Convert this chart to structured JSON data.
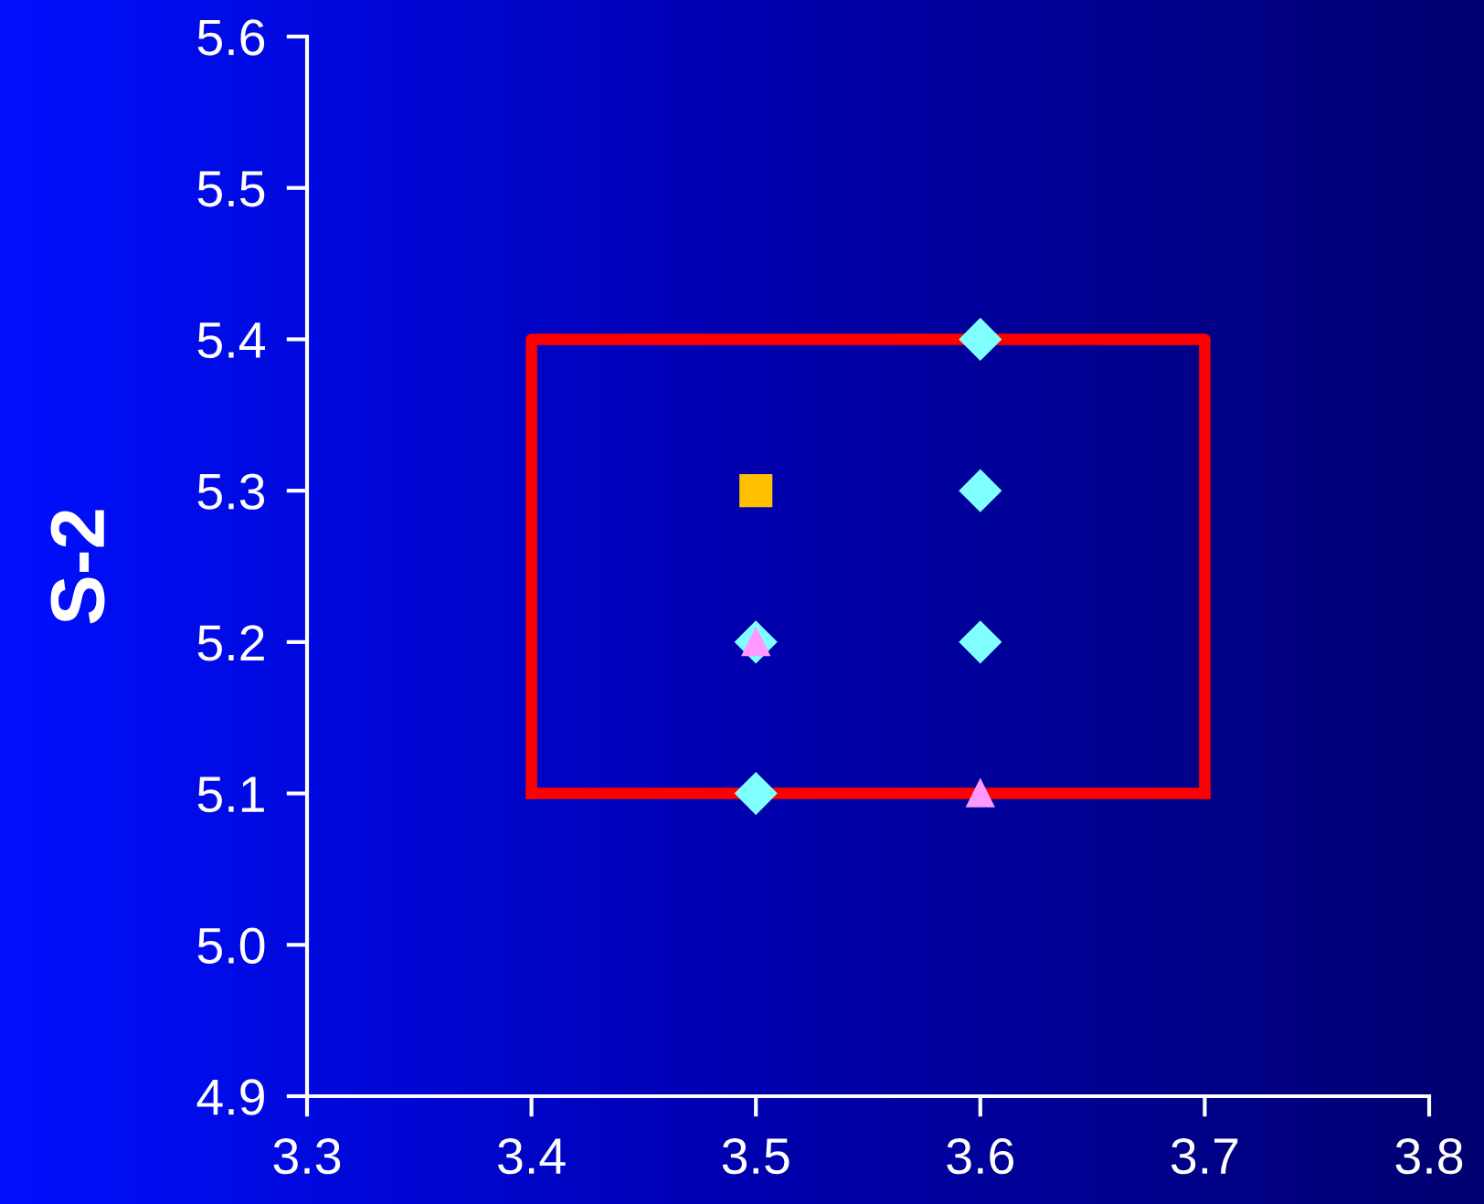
{
  "chart_data": {
    "type": "scatter",
    "ylabel": "S-2",
    "xlim": [
      3.3,
      3.8
    ],
    "xticks": [
      3.3,
      3.4,
      3.5,
      3.6,
      3.7,
      3.8
    ],
    "ylim": [
      4.9,
      5.6
    ],
    "yticks": [
      4.9,
      {
        "value": 5.0,
        "label": "5.0"
      },
      5.1,
      5.2,
      5.3,
      5.4,
      5.5,
      5.6
    ],
    "grid": false,
    "legend": false,
    "series": [
      {
        "type": "line",
        "color": "#ff0000",
        "marker": "none",
        "line_style": "solid",
        "x": [
          3.4,
          3.4,
          3.7,
          3.7
        ],
        "values": [
          5.1,
          5.4,
          5.4,
          5.1
        ]
      },
      {
        "type": "line",
        "color": "#ff0000",
        "marker": "none",
        "line_style": "solid",
        "x": [
          3.4,
          3.7
        ],
        "values": [
          5.1,
          5.1
        ]
      },
      {
        "color": "#80ffff",
        "marker": "diamond",
        "x": [
          3.5,
          3.5,
          3.6,
          3.6,
          3.6
        ],
        "values": [
          5.2,
          5.1,
          5.4,
          5.3,
          5.2
        ]
      },
      {
        "color": "#ffc000",
        "marker": "square",
        "x": [
          3.5
        ],
        "values": [
          5.3
        ]
      },
      {
        "color": "#ff99ff",
        "marker": "triangle",
        "x": [
          3.5,
          3.6
        ],
        "values": [
          5.2,
          5.1
        ]
      }
    ]
  }
}
